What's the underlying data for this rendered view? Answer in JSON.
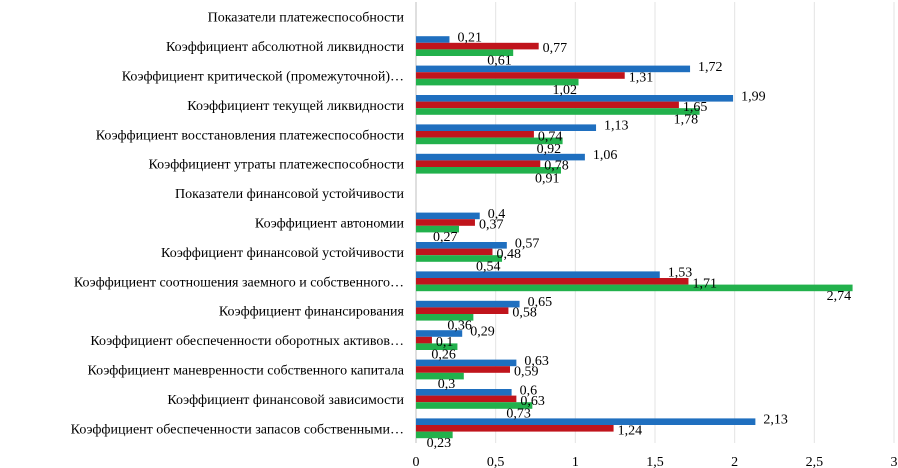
{
  "chart_data": {
    "type": "bar",
    "orientation": "horizontal",
    "categories": [
      "Показатели платежеспособности",
      "Коэффициент абсолютной ликвидности",
      "Коэффициент критической (промежуточной)…",
      "Коэффициент текущей ликвидности",
      "Коэффициент восстановления платежеспособности",
      "Коэффициент утраты платежеспособности",
      "Показатели финансовой устойчивости",
      "Коэффициент автономии",
      "Коэффициент финансовой устойчивости",
      "Коэффициент соотношения заемного и собственного…",
      "Коэффициент финансирования",
      "Коэффициент обеспеченности оборотных активов…",
      "Коэффициент маневренности собственного капитала",
      "Коэффициент финансовой зависимости",
      "Коэффициент обеспеченности запасов собственными…"
    ],
    "series": [
      {
        "values": [
          null,
          0.21,
          1.72,
          1.99,
          1.13,
          1.06,
          null,
          0.4,
          0.57,
          1.53,
          0.65,
          0.29,
          0.63,
          0.6,
          2.13
        ],
        "labels": [
          "",
          "0,21",
          "1,72",
          "1,99",
          "1,13",
          "1,06",
          "",
          "0,4",
          "0,57",
          "1,53",
          "0,65",
          "0,29",
          "0,63",
          "0,6",
          "2,13"
        ]
      },
      {
        "values": [
          null,
          0.77,
          1.31,
          1.65,
          0.74,
          0.78,
          null,
          0.37,
          0.48,
          1.71,
          0.58,
          0.1,
          0.59,
          0.63,
          1.24
        ],
        "labels": [
          "",
          "0,77",
          "1,31",
          "1,65",
          "0,74",
          "0,78",
          "",
          "0,37",
          "0,48",
          "1,71",
          "0,58",
          "0,1",
          "0,59",
          "0,63",
          "1,24"
        ]
      },
      {
        "values": [
          null,
          0.61,
          1.02,
          1.78,
          0.92,
          0.91,
          null,
          0.27,
          0.54,
          2.74,
          0.36,
          0.26,
          0.3,
          0.73,
          0.23
        ],
        "labels": [
          "",
          "0,61",
          "1,02",
          "1,78",
          "0,92",
          "0,91",
          "",
          "0,27",
          "0,54",
          "2,74",
          "0,36",
          "0,26",
          "0,3",
          "0,73",
          "0,23"
        ]
      }
    ],
    "series_colors": [
      "#1F6FBF",
      "#C0141C",
      "#22B14C"
    ],
    "xlim": [
      0,
      3
    ],
    "xticks": [
      0,
      0.5,
      1,
      1.5,
      2,
      2.5,
      3
    ],
    "xtick_labels": [
      "0",
      "0,5",
      "1",
      "1,5",
      "2",
      "2,5",
      "3"
    ],
    "grid": true,
    "legend": "none"
  }
}
